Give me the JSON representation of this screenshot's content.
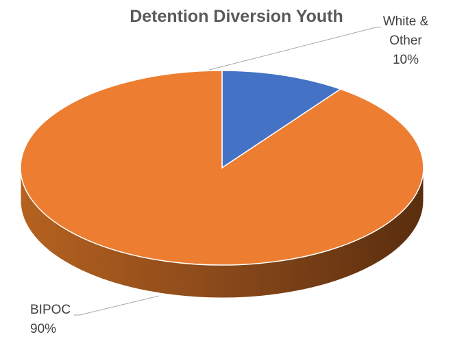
{
  "chart_data": {
    "type": "pie",
    "style": "3d",
    "title": "Detention Diversion Youth",
    "slices": [
      {
        "label": "White & Other",
        "value": 10,
        "value_label": "10%",
        "color": "#4472c4"
      },
      {
        "label": "BIPOC",
        "value": 90,
        "value_label": "90%",
        "color": "#ed7d31"
      }
    ],
    "leader_line_color": "#a6a6a6"
  }
}
